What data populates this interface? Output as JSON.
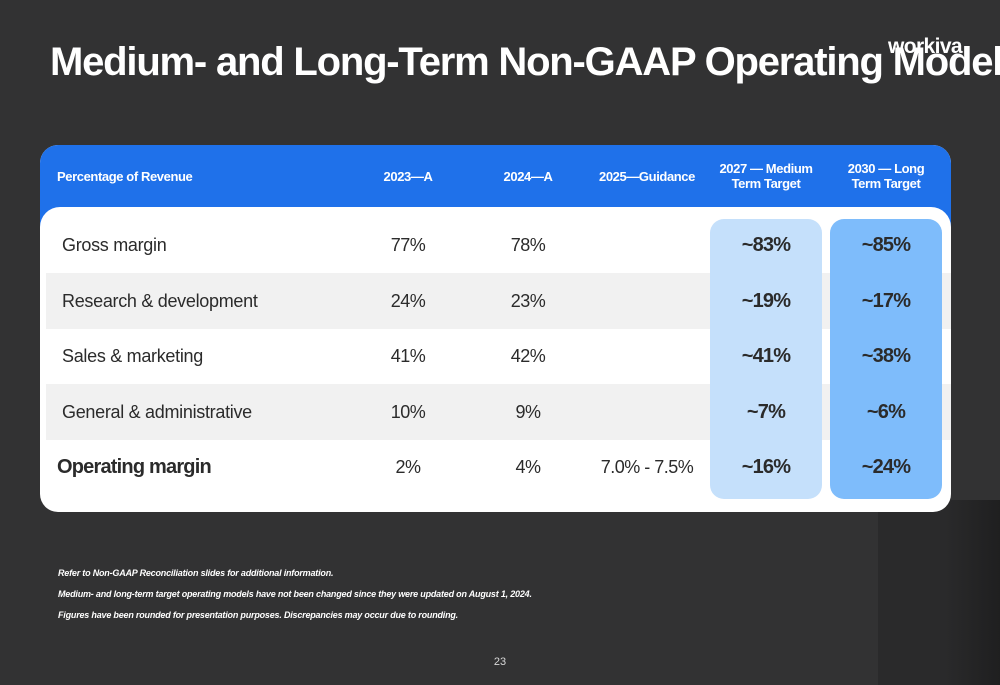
{
  "title": "Medium- and Long-Term Non-GAAP Operating Model",
  "logo_text": "workiva",
  "table": {
    "columns": [
      "Percentage of Revenue",
      "2023—A",
      "2024—A",
      "2025—Guidance",
      "2027 — Medium Term Target",
      "2030 — Long Term Target"
    ],
    "rows": [
      {
        "label": "Gross margin",
        "c2023": "77%",
        "c2024": "78%",
        "c2025": "",
        "c2027": "~83%",
        "c2030": "~85%"
      },
      {
        "label": "Research & development",
        "c2023": "24%",
        "c2024": "23%",
        "c2025": "",
        "c2027": "~19%",
        "c2030": "~17%"
      },
      {
        "label": "Sales & marketing",
        "c2023": "41%",
        "c2024": "42%",
        "c2025": "",
        "c2027": "~41%",
        "c2030": "~38%"
      },
      {
        "label": "General & administrative",
        "c2023": "10%",
        "c2024": "9%",
        "c2025": "",
        "c2027": "~7%",
        "c2030": "~6%"
      },
      {
        "label": "Operating margin",
        "c2023": "2%",
        "c2024": "4%",
        "c2025": "7.0% - 7.5%",
        "c2027": "~16%",
        "c2030": "~24%"
      }
    ]
  },
  "colors": {
    "background": "#323233",
    "header_blue": "#1f71ea",
    "highlight_medium": "#c5e0fb",
    "highlight_long": "#7ebcfb",
    "band_gray": "#f1f1f1"
  },
  "footnotes": [
    "Refer to Non-GAAP Reconciliation slides for additional information.",
    "Medium- and long-term target operating models have not been changed since they were updated on August 1, 2024.",
    "Figures have been rounded for presentation purposes. Discrepancies may occur due to rounding."
  ],
  "page_number": "23"
}
